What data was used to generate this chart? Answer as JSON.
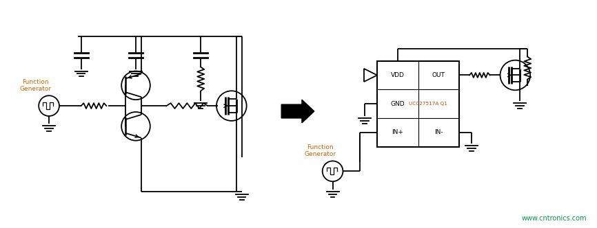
{
  "bg_color": "#ffffff",
  "line_color": "#000000",
  "text_color_orange": "#cc6600",
  "text_color_green": "#009944",
  "watermark": "www.cntronics.com",
  "fig_width": 8.66,
  "fig_height": 3.32,
  "dpi": 100,
  "ic_label": "UCC27517A Q1",
  "ic_vdd": "VDD",
  "ic_gnd": "GND",
  "ic_inp": "IN+",
  "ic_inn": "IN-",
  "ic_out": "OUT",
  "func_gen_label_left": "Function\nGenerator",
  "func_gen_label_right": "Function\nGenerator"
}
